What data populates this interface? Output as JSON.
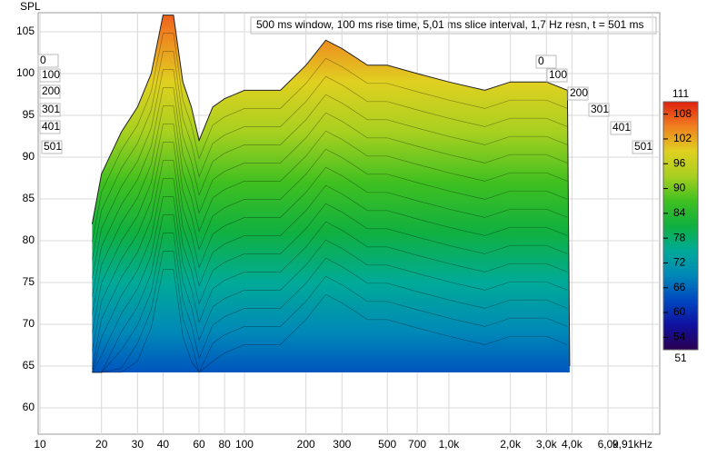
{
  "chart_data": {
    "type": "waterfall",
    "title": "500 ms window, 100 ms rise time, 5,01 ms slice interval, 1,7 Hz resn, t = 501 ms",
    "ylabel": "SPL",
    "log_x": true,
    "grid": true,
    "xlim": [
      10,
      9910
    ],
    "xticks": [
      10,
      20,
      30,
      40,
      60,
      80,
      100,
      200,
      300,
      500,
      700,
      {
        "value": 1000,
        "label": "1,0k"
      },
      {
        "value": 2000,
        "label": "2,0k"
      },
      {
        "value": 3000,
        "label": "3,0k"
      },
      {
        "value": 4000,
        "label": "4,0k"
      },
      {
        "value": 6000,
        "label": "6,0k"
      },
      {
        "value": 9910,
        "label": "9,91kHz"
      }
    ],
    "ylim": [
      56,
      107
    ],
    "yticks": [
      60,
      65,
      70,
      75,
      80,
      85,
      90,
      95,
      100,
      105
    ],
    "slices": [
      0,
      100,
      200,
      301,
      401,
      501
    ],
    "clim": [
      51,
      111
    ],
    "cticks": [
      54,
      60,
      66,
      72,
      78,
      84,
      90,
      96,
      102,
      108
    ],
    "colors": [
      "#2a0050",
      "#1010a0",
      "#0048c0",
      "#0088b8",
      "#00aa98",
      "#10b040",
      "#40c020",
      "#a8d020",
      "#e0d020",
      "#f08020",
      "#e02010"
    ],
    "x": [
      18,
      20,
      25,
      30,
      35,
      40,
      45,
      50,
      55,
      60,
      70,
      80,
      100,
      150,
      200,
      250,
      300,
      400,
      500,
      700,
      1000,
      1500,
      2000,
      3000,
      3800,
      3900
    ],
    "values": [
      82,
      88,
      93,
      96,
      100,
      107,
      107,
      99,
      96,
      92,
      96,
      97,
      98,
      98,
      101,
      104,
      103,
      101,
      101,
      100,
      99,
      98,
      99,
      99,
      98,
      65
    ]
  }
}
